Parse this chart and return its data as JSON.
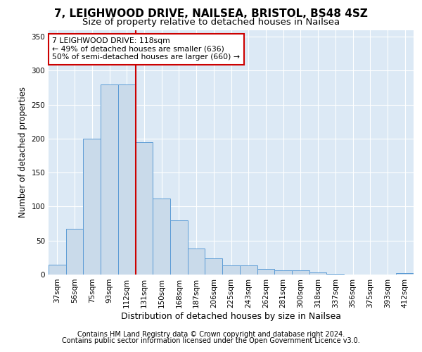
{
  "title1": "7, LEIGHWOOD DRIVE, NAILSEA, BRISTOL, BS48 4SZ",
  "title2": "Size of property relative to detached houses in Nailsea",
  "xlabel": "Distribution of detached houses by size in Nailsea",
  "ylabel": "Number of detached properties",
  "categories": [
    "37sqm",
    "56sqm",
    "75sqm",
    "93sqm",
    "112sqm",
    "131sqm",
    "150sqm",
    "168sqm",
    "187sqm",
    "206sqm",
    "225sqm",
    "243sqm",
    "262sqm",
    "281sqm",
    "300sqm",
    "318sqm",
    "337sqm",
    "356sqm",
    "375sqm",
    "393sqm",
    "412sqm"
  ],
  "values": [
    15,
    67,
    200,
    280,
    280,
    195,
    112,
    80,
    38,
    24,
    13,
    13,
    8,
    6,
    6,
    3,
    1,
    0,
    0,
    0,
    2
  ],
  "bar_color": "#c9daea",
  "bar_edge_color": "#5b9bd5",
  "vline_x": 4.5,
  "vline_color": "#cc0000",
  "annotation_title": "7 LEIGHWOOD DRIVE: 118sqm",
  "annotation_line1": "← 49% of detached houses are smaller (636)",
  "annotation_line2": "50% of semi-detached houses are larger (660) →",
  "annotation_box_color": "#ffffff",
  "annotation_box_edge": "#cc0000",
  "footnote1": "Contains HM Land Registry data © Crown copyright and database right 2024.",
  "footnote2": "Contains public sector information licensed under the Open Government Licence v3.0.",
  "ylim": [
    0,
    360
  ],
  "yticks": [
    0,
    50,
    100,
    150,
    200,
    250,
    300,
    350
  ],
  "background_color": "#dce9f5",
  "title1_fontsize": 11,
  "title2_fontsize": 9.5,
  "xlabel_fontsize": 9,
  "ylabel_fontsize": 8.5,
  "tick_fontsize": 7.5,
  "footnote_fontsize": 7
}
